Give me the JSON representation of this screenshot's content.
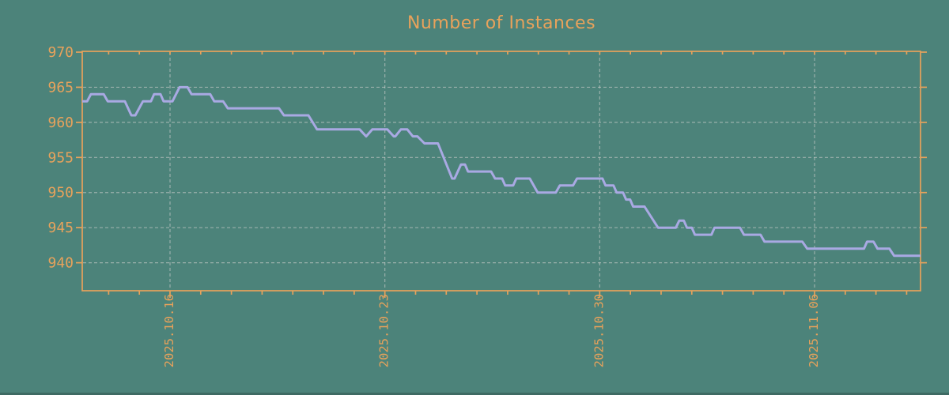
{
  "title": "Number of Instances",
  "colors": {
    "background": "#4C837A",
    "accent_orange": "#E8A25B",
    "series_line": "#A9A9E3",
    "gridline": "#C9CDC9",
    "bottom_edge": "#3E6A63"
  },
  "chart_data": {
    "type": "line",
    "title": "Number of Instances",
    "series_name": "Number of Instances",
    "legend": false,
    "grid": true,
    "x_axis": {
      "tick_labels": [
        "2025.10.16",
        "2025.10.23",
        "2025.10.30",
        "2025.11.06"
      ],
      "tick_day_offsets": [
        0,
        7,
        14,
        21
      ],
      "minor_tick_interval_days": 1,
      "minor_tick_day_range": [
        -2,
        24
      ],
      "range_days": [
        -2.86,
        24.45
      ]
    },
    "y_axis": {
      "tick_labels": [
        "970",
        "965",
        "960",
        "955",
        "950",
        "945",
        "940"
      ],
      "tick_values": [
        970,
        965,
        960,
        955,
        950,
        945,
        940
      ],
      "gridline_values": [
        965,
        960,
        955,
        950,
        945,
        940
      ],
      "range": [
        936,
        970
      ]
    },
    "points": [
      [
        -2.86,
        963
      ],
      [
        -2.7,
        963
      ],
      [
        -2.58,
        964
      ],
      [
        -2.16,
        964
      ],
      [
        -2.03,
        963
      ],
      [
        -1.47,
        963
      ],
      [
        -1.26,
        961
      ],
      [
        -1.13,
        961
      ],
      [
        -0.88,
        963
      ],
      [
        -0.62,
        963
      ],
      [
        -0.52,
        964
      ],
      [
        -0.31,
        964
      ],
      [
        -0.21,
        963
      ],
      [
        0.08,
        963
      ],
      [
        0.31,
        965
      ],
      [
        0.57,
        965
      ],
      [
        0.7,
        964
      ],
      [
        1.31,
        964
      ],
      [
        1.44,
        963
      ],
      [
        1.73,
        963
      ],
      [
        1.88,
        962
      ],
      [
        3.55,
        962
      ],
      [
        3.71,
        961
      ],
      [
        4.51,
        961
      ],
      [
        4.79,
        959
      ],
      [
        6.18,
        959
      ],
      [
        6.39,
        958
      ],
      [
        6.59,
        959
      ],
      [
        7.08,
        959
      ],
      [
        7.29,
        958
      ],
      [
        7.34,
        958
      ],
      [
        7.52,
        959
      ],
      [
        7.73,
        959
      ],
      [
        7.91,
        958
      ],
      [
        8.06,
        958
      ],
      [
        8.29,
        957
      ],
      [
        8.73,
        957
      ],
      [
        9.19,
        952
      ],
      [
        9.27,
        952
      ],
      [
        9.48,
        954
      ],
      [
        9.61,
        954
      ],
      [
        9.71,
        953
      ],
      [
        10.46,
        953
      ],
      [
        10.59,
        952
      ],
      [
        10.82,
        952
      ],
      [
        10.92,
        951
      ],
      [
        11.18,
        951
      ],
      [
        11.28,
        952
      ],
      [
        11.72,
        952
      ],
      [
        11.98,
        950
      ],
      [
        12.57,
        950
      ],
      [
        12.7,
        951
      ],
      [
        13.13,
        951
      ],
      [
        13.26,
        952
      ],
      [
        14.09,
        952
      ],
      [
        14.19,
        951
      ],
      [
        14.45,
        951
      ],
      [
        14.55,
        950
      ],
      [
        14.76,
        950
      ],
      [
        14.86,
        949
      ],
      [
        14.99,
        949
      ],
      [
        15.09,
        948
      ],
      [
        15.46,
        948
      ],
      [
        15.9,
        945
      ],
      [
        16.48,
        945
      ],
      [
        16.59,
        946
      ],
      [
        16.74,
        946
      ],
      [
        16.84,
        945
      ],
      [
        17.0,
        945
      ],
      [
        17.1,
        944
      ],
      [
        17.64,
        944
      ],
      [
        17.74,
        945
      ],
      [
        18.57,
        945
      ],
      [
        18.7,
        944
      ],
      [
        19.24,
        944
      ],
      [
        19.37,
        943
      ],
      [
        20.6,
        943
      ],
      [
        20.76,
        942
      ],
      [
        22.61,
        942
      ],
      [
        22.71,
        943
      ],
      [
        22.92,
        943
      ],
      [
        23.05,
        942
      ],
      [
        23.44,
        942
      ],
      [
        23.59,
        941
      ],
      [
        24.45,
        941
      ]
    ]
  }
}
